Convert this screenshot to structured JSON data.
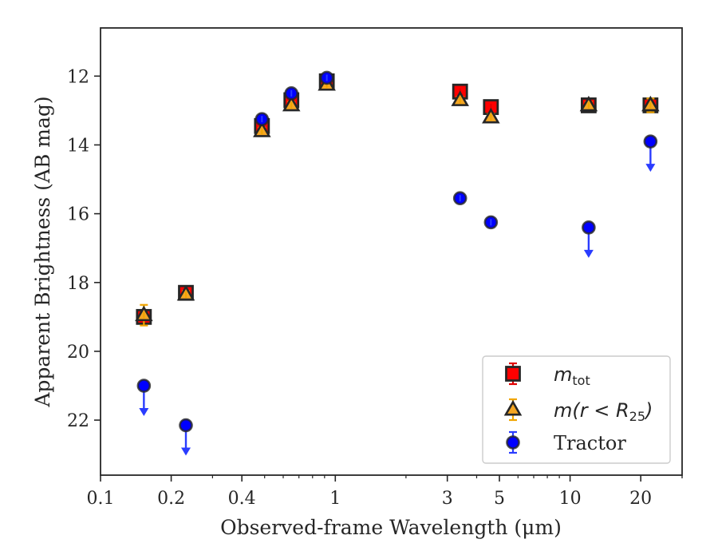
{
  "chart_data": {
    "type": "scatter",
    "title": "",
    "xlabel": "Observed-frame Wavelength (μm)",
    "ylabel": "Apparent Brightness (AB mag)",
    "xscale": "log",
    "xlim": [
      0.1,
      30
    ],
    "ylim": [
      23.6,
      10.6
    ],
    "y_inverted": true,
    "x_ticks": [
      {
        "value": 0.1,
        "label": "0.1"
      },
      {
        "value": 0.2,
        "label": "0.2"
      },
      {
        "value": 0.4,
        "label": "0.4"
      },
      {
        "value": 1,
        "label": "1"
      },
      {
        "value": 3,
        "label": "3"
      },
      {
        "value": 5,
        "label": "5"
      },
      {
        "value": 10,
        "label": "10"
      },
      {
        "value": 20,
        "label": "20"
      }
    ],
    "y_ticks": [
      {
        "value": 12,
        "label": "12"
      },
      {
        "value": 14,
        "label": "14"
      },
      {
        "value": 16,
        "label": "16"
      },
      {
        "value": 18,
        "label": "18"
      },
      {
        "value": 20,
        "label": "20"
      },
      {
        "value": 22,
        "label": "22"
      }
    ],
    "grid": false,
    "legend": {
      "position": "lower-right",
      "entries": [
        {
          "series": "m_tot",
          "main": "m",
          "sub": "tot",
          "suffix": ""
        },
        {
          "series": "m_r25",
          "main": "m(r < R",
          "sub": "25",
          "suffix": ")"
        },
        {
          "series": "tractor",
          "main": "Tractor",
          "sub": "",
          "suffix": ""
        }
      ]
    },
    "series": [
      {
        "key": "m_tot",
        "marker": "square",
        "color": "#ff0000",
        "edge": "#262626",
        "points": [
          {
            "x": 0.153,
            "y": 19.0,
            "err": 0.15
          },
          {
            "x": 0.231,
            "y": 18.3,
            "err": 0.1
          },
          {
            "x": 0.487,
            "y": 13.45,
            "err": 0.2
          },
          {
            "x": 0.65,
            "y": 12.7,
            "err": 0.2
          },
          {
            "x": 0.92,
            "y": 12.15,
            "err": 0.15
          },
          {
            "x": 3.4,
            "y": 12.45,
            "err": 0.1
          },
          {
            "x": 4.6,
            "y": 12.9,
            "err": 0.1
          },
          {
            "x": 12.0,
            "y": 12.85,
            "err": 0.1
          },
          {
            "x": 22.0,
            "y": 12.85,
            "err": 0.1
          }
        ]
      },
      {
        "key": "m_r25",
        "marker": "triangle",
        "color": "#f5a623",
        "edge": "#262626",
        "points": [
          {
            "x": 0.153,
            "y": 18.95,
            "err": 0.3
          },
          {
            "x": 0.231,
            "y": 18.35,
            "err": 0.1
          },
          {
            "x": 0.487,
            "y": 13.6,
            "err": 0.1
          },
          {
            "x": 0.65,
            "y": 12.85,
            "err": 0.1
          },
          {
            "x": 0.92,
            "y": 12.25,
            "err": 0.1
          },
          {
            "x": 3.4,
            "y": 12.7,
            "err": 0.1
          },
          {
            "x": 4.6,
            "y": 13.2,
            "err": 0.1
          },
          {
            "x": 12.0,
            "y": 12.85,
            "err": 0.1
          },
          {
            "x": 22.0,
            "y": 12.85,
            "err": 0.2
          }
        ]
      },
      {
        "key": "tractor",
        "marker": "circle",
        "color": "#0000ff",
        "edge": "#262626",
        "points": [
          {
            "x": 0.153,
            "y": 21.0,
            "upper_limit": true
          },
          {
            "x": 0.231,
            "y": 22.15,
            "upper_limit": true
          },
          {
            "x": 0.487,
            "y": 13.25,
            "err": 0.1
          },
          {
            "x": 0.65,
            "y": 12.5,
            "err": 0.1
          },
          {
            "x": 0.92,
            "y": 12.05,
            "err": 0.1
          },
          {
            "x": 3.4,
            "y": 15.55,
            "err": 0.05
          },
          {
            "x": 4.6,
            "y": 16.25,
            "err": 0.05
          },
          {
            "x": 12.0,
            "y": 16.4,
            "upper_limit": true
          },
          {
            "x": 22.0,
            "y": 13.9,
            "upper_limit": true
          }
        ]
      }
    ]
  }
}
